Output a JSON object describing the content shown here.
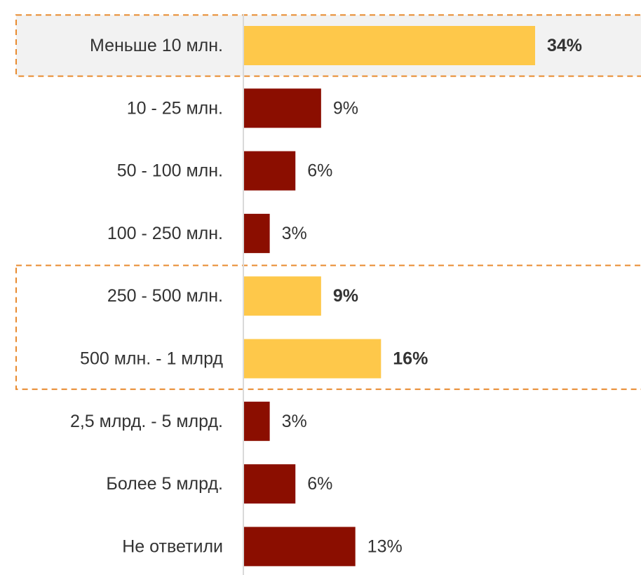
{
  "chart_data": {
    "type": "bar",
    "orientation": "horizontal",
    "categories": [
      "Меньше 10 млн.",
      "10 - 25 млн.",
      "50 - 100 млн.",
      "100 - 250 млн.",
      "250 - 500 млн.",
      "500 млн. - 1 млрд",
      "2,5 млрд. - 5 млрд.",
      "Более 5 млрд.",
      "Не ответили"
    ],
    "values": [
      34,
      9,
      6,
      3,
      9,
      16,
      3,
      6,
      13
    ],
    "value_labels": [
      "34%",
      "9%",
      "6%",
      "3%",
      "9%",
      "16%",
      "3%",
      "6%",
      "13%"
    ],
    "highlighted": [
      true,
      false,
      false,
      false,
      true,
      true,
      false,
      false,
      false
    ],
    "highlight_groups": [
      [
        0
      ],
      [
        4,
        5
      ]
    ],
    "xlim": [
      0,
      34
    ],
    "grid": false,
    "colors": {
      "bar": "#8b0e00",
      "highlight_bar": "#fec84a",
      "highlight_border": "#e88a2e",
      "highlight_fill": "#f2f2f2",
      "axis": "#d9d9d9",
      "text": "#333333"
    }
  }
}
